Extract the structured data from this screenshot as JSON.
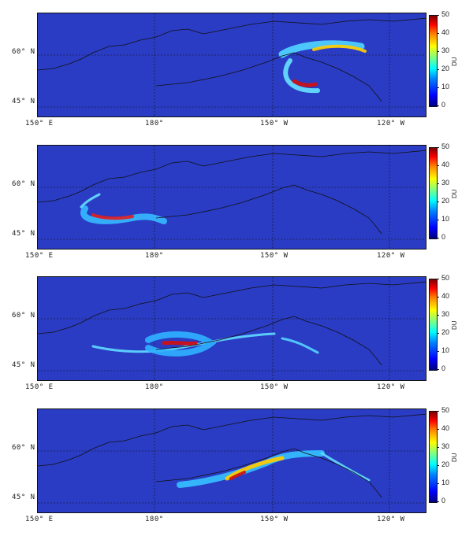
{
  "panels": [
    {
      "id": "p1"
    },
    {
      "id": "p2"
    },
    {
      "id": "p3"
    },
    {
      "id": "p4"
    }
  ],
  "axes": {
    "lat_labels": [
      "60° N",
      "45° N"
    ],
    "lon_labels": [
      "150° E",
      "180°",
      "150° W",
      "120° W"
    ]
  },
  "colorbar": {
    "unit": "DU",
    "ticks": [
      "50",
      "40",
      "30",
      "20",
      "10",
      "0"
    ],
    "colormap": "jet"
  },
  "colors": {
    "background": "#2a3cc4",
    "coastline": "#111111"
  }
}
